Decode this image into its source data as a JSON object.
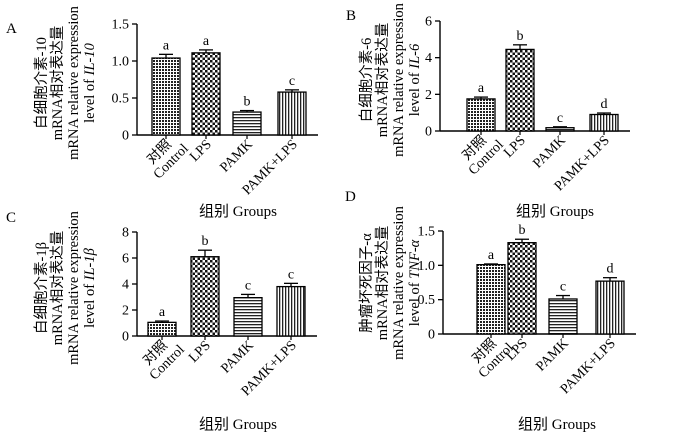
{
  "chart_data": [
    {
      "panel": "A",
      "type": "bar",
      "categories": [
        "对照\nControl",
        "LPS",
        "PAMK",
        "PAMK+LPS"
      ],
      "values": [
        1.04,
        1.11,
        0.31,
        0.58
      ],
      "errors": [
        0.05,
        0.04,
        0.02,
        0.03
      ],
      "significance": [
        "a",
        "a",
        "b",
        "c"
      ],
      "patterns": [
        "dense-dot",
        "cross",
        "horizontal",
        "vertical"
      ],
      "ylim": [
        0,
        1.5
      ],
      "yticks": [
        0,
        0.5,
        1.0,
        1.5
      ],
      "ytick_labels": [
        "0",
        "0.5",
        "1.0",
        "1.5"
      ],
      "ylabel": [
        "白细胞介素-10",
        "mRNA相对表达量",
        "mRNA relative expression",
        "level of IL-10"
      ],
      "xlabel": "组别 Groups"
    },
    {
      "panel": "B",
      "type": "bar",
      "categories": [
        "对照\nControl",
        "LPS",
        "PAMK",
        "PAMK+LPS"
      ],
      "values": [
        1.75,
        4.45,
        0.18,
        0.9
      ],
      "errors": [
        0.1,
        0.25,
        0.05,
        0.08
      ],
      "significance": [
        "a",
        "b",
        "c",
        "d"
      ],
      "patterns": [
        "dense-dot",
        "cross",
        "horizontal",
        "vertical"
      ],
      "ylim": [
        0,
        6
      ],
      "yticks": [
        0,
        2,
        4,
        6
      ],
      "ytick_labels": [
        "0",
        "2",
        "4",
        "6"
      ],
      "ylabel": [
        "白细胞介素-6",
        "mRNA相对表达量",
        "mRNA relative expression",
        "level of IL-6"
      ],
      "xlabel": "组别 Groups"
    },
    {
      "panel": "C",
      "type": "bar",
      "categories": [
        "对照\nControl",
        "LPS",
        "PAMK",
        "PAMK+LPS"
      ],
      "values": [
        1.05,
        6.1,
        2.95,
        3.8
      ],
      "errors": [
        0.1,
        0.5,
        0.25,
        0.25
      ],
      "significance": [
        "a",
        "b",
        "c",
        "c"
      ],
      "patterns": [
        "dense-dot",
        "cross",
        "horizontal",
        "vertical"
      ],
      "ylim": [
        0,
        8
      ],
      "yticks": [
        0,
        2,
        4,
        6,
        8
      ],
      "ytick_labels": [
        "0",
        "2",
        "4",
        "6",
        "8"
      ],
      "ylabel": [
        "白细胞介素-1β",
        "mRNA相对表达量",
        "mRNA relative expression",
        "level of IL-1β"
      ],
      "xlabel": "组别 Groups"
    },
    {
      "panel": "D",
      "type": "bar",
      "categories": [
        "对照\nControl",
        "LPS",
        "PAMK",
        "PAMK+LPS"
      ],
      "values": [
        1.01,
        1.33,
        0.51,
        0.77
      ],
      "errors": [
        0.01,
        0.05,
        0.05,
        0.05
      ],
      "significance": [
        "a",
        "b",
        "c",
        "d"
      ],
      "patterns": [
        "dense-dot",
        "cross",
        "horizontal",
        "vertical"
      ],
      "ylim": [
        0,
        1.5
      ],
      "yticks": [
        0,
        0.5,
        1.0,
        1.5
      ],
      "ytick_labels": [
        "0",
        "0.5",
        "1.0",
        "1.5"
      ],
      "ylabel": [
        "肿瘤坏死因子-α",
        "mRNA相对表达量",
        "mRNA relative expression",
        "level of TNF-α"
      ],
      "xlabel": "组别 Groups"
    }
  ]
}
